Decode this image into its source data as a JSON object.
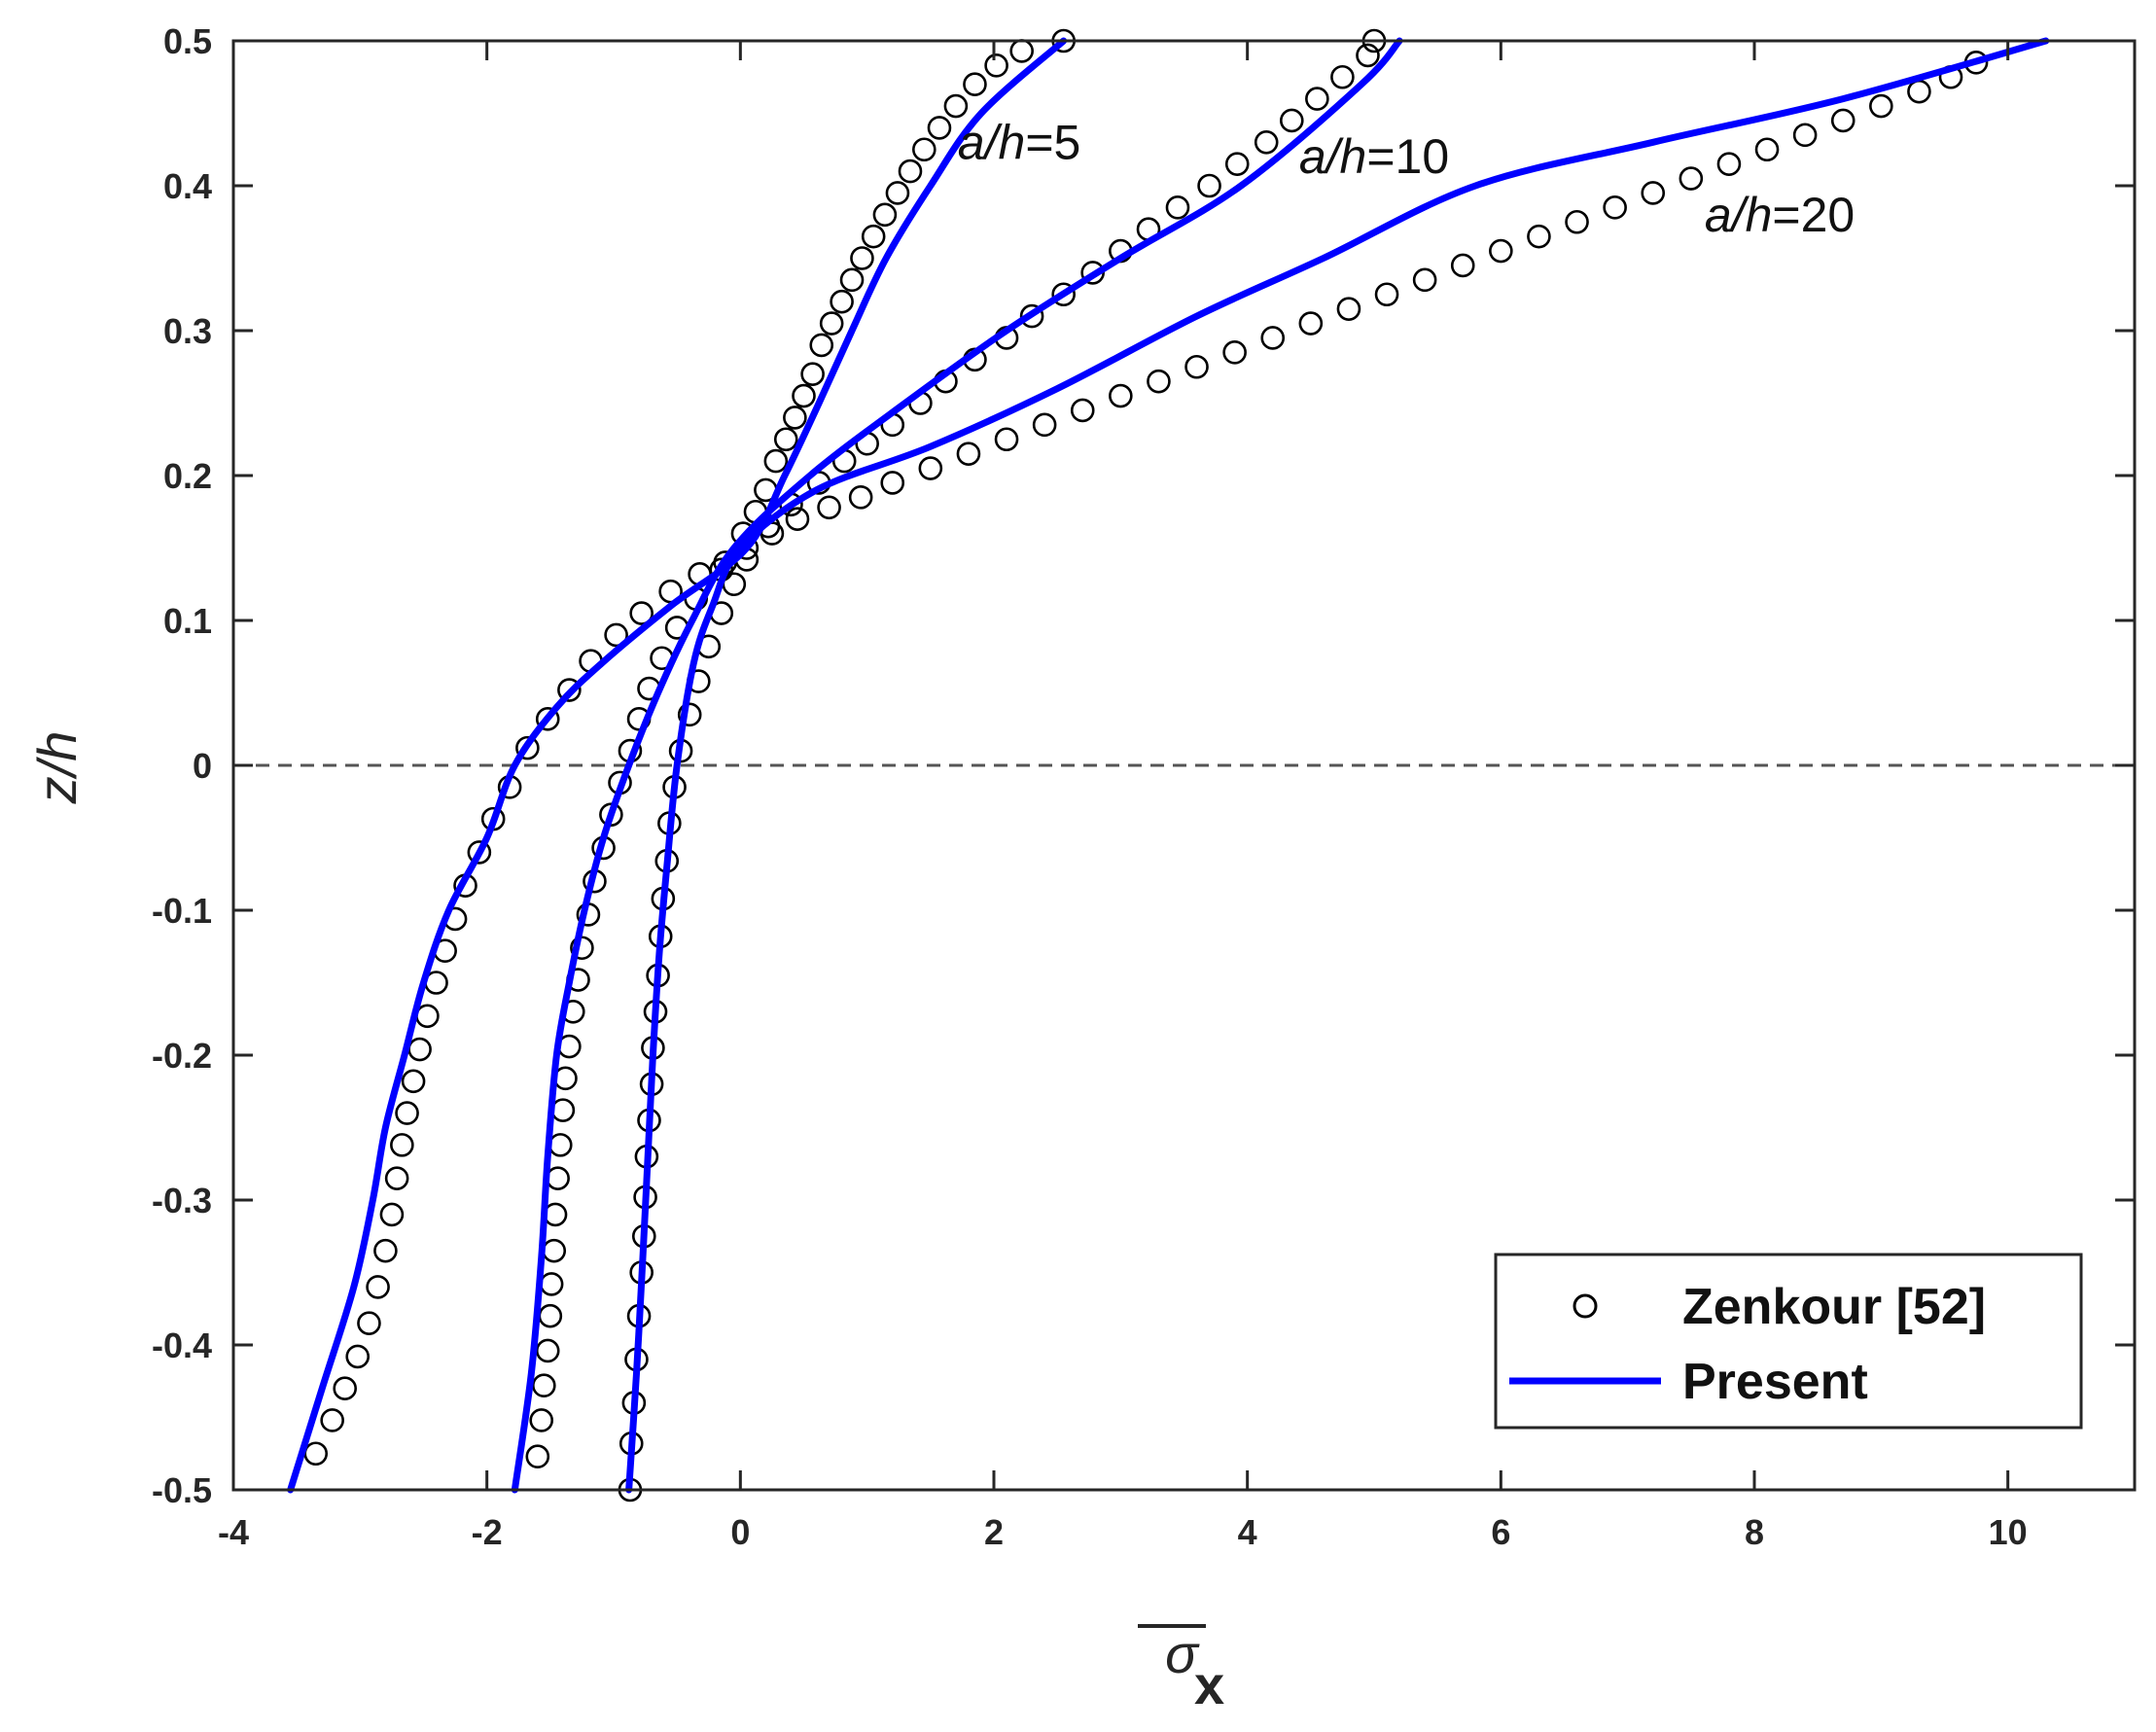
{
  "chart_data": {
    "type": "line",
    "xlabel_symbol": "σ",
    "xlabel_sub": "x",
    "ylabel": "z/h",
    "xlim": [
      -4,
      11
    ],
    "ylim": [
      -0.5,
      0.5
    ],
    "xticks": [
      -4,
      -2,
      0,
      2,
      4,
      6,
      8,
      10
    ],
    "xtick_labels": [
      "-4",
      "-2",
      "0",
      "2",
      "4",
      "6",
      "8",
      "10"
    ],
    "yticks": [
      -0.5,
      -0.4,
      -0.3,
      -0.2,
      -0.1,
      0,
      0.1,
      0.2,
      0.3,
      0.4,
      0.5
    ],
    "ytick_labels": [
      "-0.5",
      "-0.4",
      "-0.3",
      "-0.2",
      "-0.1",
      "0",
      "0.1",
      "0.2",
      "0.3",
      "0.4",
      "0.5"
    ],
    "grid": false,
    "reference_line": {
      "y": 0,
      "style": "dashed"
    },
    "legend": {
      "position": "bottom-right",
      "entries": [
        {
          "label": "Zenkour [52]",
          "marker": "open-circle",
          "color": "#000000"
        },
        {
          "label": "Present",
          "marker": "line",
          "color": "#0000ff"
        }
      ]
    },
    "curve_labels": [
      {
        "text": "a/h=5",
        "italic": "a/h",
        "rest": "=5",
        "x": 2.2,
        "y": 0.43
      },
      {
        "text": "a/h=10",
        "italic": "a/h",
        "rest": "=10",
        "x": 5.0,
        "y": 0.42
      },
      {
        "text": "a/h=20",
        "italic": "a/h",
        "rest": "=20",
        "x": 8.2,
        "y": 0.38
      }
    ],
    "series": [
      {
        "name": "Present",
        "group": "a/h=5",
        "style": "line",
        "color": "#0000ff",
        "points": [
          [
            -3.55,
            -0.5
          ],
          [
            -3.3,
            -0.43
          ],
          [
            -3.05,
            -0.36
          ],
          [
            -2.9,
            -0.3
          ],
          [
            -2.8,
            -0.25
          ],
          [
            -2.65,
            -0.2
          ],
          [
            -2.5,
            -0.15
          ],
          [
            -2.3,
            -0.1
          ],
          [
            -2.0,
            -0.05
          ],
          [
            -1.78,
            0.0
          ],
          [
            -1.45,
            0.04
          ],
          [
            -1.1,
            0.07
          ],
          [
            -0.55,
            0.11
          ],
          [
            0.05,
            0.15
          ],
          [
            0.35,
            0.2
          ],
          [
            0.62,
            0.25
          ],
          [
            0.88,
            0.3
          ],
          [
            1.15,
            0.35
          ],
          [
            1.5,
            0.4
          ],
          [
            1.9,
            0.45
          ],
          [
            2.55,
            0.5
          ]
        ]
      },
      {
        "name": "Present",
        "group": "a/h=10",
        "style": "line",
        "color": "#0000ff",
        "points": [
          [
            -1.78,
            -0.5
          ],
          [
            -1.65,
            -0.42
          ],
          [
            -1.57,
            -0.34
          ],
          [
            -1.52,
            -0.27
          ],
          [
            -1.45,
            -0.2
          ],
          [
            -1.35,
            -0.15
          ],
          [
            -1.23,
            -0.1
          ],
          [
            -1.08,
            -0.05
          ],
          [
            -0.88,
            0.0
          ],
          [
            -0.65,
            0.05
          ],
          [
            -0.38,
            0.1
          ],
          [
            -0.05,
            0.15
          ],
          [
            0.55,
            0.2
          ],
          [
            1.3,
            0.25
          ],
          [
            2.1,
            0.3
          ],
          [
            3.0,
            0.35
          ],
          [
            3.95,
            0.4
          ],
          [
            4.9,
            0.47
          ],
          [
            5.2,
            0.5
          ]
        ]
      },
      {
        "name": "Present",
        "group": "a/h=20",
        "style": "line",
        "color": "#0000ff",
        "points": [
          [
            -0.88,
            -0.5
          ],
          [
            -0.82,
            -0.42
          ],
          [
            -0.77,
            -0.34
          ],
          [
            -0.73,
            -0.27
          ],
          [
            -0.69,
            -0.2
          ],
          [
            -0.64,
            -0.13
          ],
          [
            -0.58,
            -0.07
          ],
          [
            -0.5,
            0.0
          ],
          [
            -0.37,
            0.07
          ],
          [
            -0.22,
            0.11
          ],
          [
            0.0,
            0.15
          ],
          [
            0.6,
            0.19
          ],
          [
            1.5,
            0.22
          ],
          [
            2.5,
            0.26
          ],
          [
            3.6,
            0.31
          ],
          [
            4.6,
            0.35
          ],
          [
            5.8,
            0.4
          ],
          [
            7.2,
            0.43
          ],
          [
            8.7,
            0.46
          ],
          [
            10.3,
            0.5
          ]
        ]
      },
      {
        "name": "Zenkour [52]",
        "group": "a/h=5",
        "style": "circle",
        "color": "#000000",
        "points": [
          [
            -3.35,
            -0.475
          ],
          [
            -3.22,
            -0.452
          ],
          [
            -3.12,
            -0.43
          ],
          [
            -3.02,
            -0.408
          ],
          [
            -2.93,
            -0.385
          ],
          [
            -2.86,
            -0.36
          ],
          [
            -2.8,
            -0.335
          ],
          [
            -2.75,
            -0.31
          ],
          [
            -2.71,
            -0.285
          ],
          [
            -2.67,
            -0.262
          ],
          [
            -2.63,
            -0.24
          ],
          [
            -2.58,
            -0.218
          ],
          [
            -2.53,
            -0.196
          ],
          [
            -2.47,
            -0.173
          ],
          [
            -2.4,
            -0.15
          ],
          [
            -2.33,
            -0.128
          ],
          [
            -2.25,
            -0.106
          ],
          [
            -2.17,
            -0.083
          ],
          [
            -2.06,
            -0.06
          ],
          [
            -1.95,
            -0.037
          ],
          [
            -1.82,
            -0.015
          ],
          [
            -1.68,
            0.012
          ],
          [
            -1.52,
            0.032
          ],
          [
            -1.35,
            0.052
          ],
          [
            -1.18,
            0.072
          ],
          [
            -0.98,
            0.09
          ],
          [
            -0.78,
            0.105
          ],
          [
            -0.55,
            0.12
          ],
          [
            -0.32,
            0.132
          ],
          [
            -0.12,
            0.14
          ],
          [
            0.02,
            0.16
          ],
          [
            0.12,
            0.175
          ],
          [
            0.2,
            0.19
          ],
          [
            0.28,
            0.21
          ],
          [
            0.36,
            0.225
          ],
          [
            0.43,
            0.24
          ],
          [
            0.5,
            0.255
          ],
          [
            0.57,
            0.27
          ],
          [
            0.64,
            0.29
          ],
          [
            0.72,
            0.305
          ],
          [
            0.8,
            0.32
          ],
          [
            0.88,
            0.335
          ],
          [
            0.96,
            0.35
          ],
          [
            1.05,
            0.365
          ],
          [
            1.14,
            0.38
          ],
          [
            1.24,
            0.395
          ],
          [
            1.34,
            0.41
          ],
          [
            1.45,
            0.425
          ],
          [
            1.57,
            0.44
          ],
          [
            1.7,
            0.455
          ],
          [
            1.85,
            0.47
          ],
          [
            2.02,
            0.483
          ],
          [
            2.22,
            0.493
          ],
          [
            2.55,
            0.5
          ]
        ]
      },
      {
        "name": "Zenkour [52]",
        "group": "a/h=10",
        "style": "circle",
        "color": "#000000",
        "points": [
          [
            -1.6,
            -0.477
          ],
          [
            -1.57,
            -0.452
          ],
          [
            -1.55,
            -0.428
          ],
          [
            -1.52,
            -0.404
          ],
          [
            -1.5,
            -0.38
          ],
          [
            -1.49,
            -0.358
          ],
          [
            -1.47,
            -0.335
          ],
          [
            -1.46,
            -0.31
          ],
          [
            -1.44,
            -0.285
          ],
          [
            -1.42,
            -0.262
          ],
          [
            -1.4,
            -0.238
          ],
          [
            -1.38,
            -0.216
          ],
          [
            -1.35,
            -0.194
          ],
          [
            -1.32,
            -0.17
          ],
          [
            -1.28,
            -0.148
          ],
          [
            -1.25,
            -0.126
          ],
          [
            -1.2,
            -0.103
          ],
          [
            -1.15,
            -0.08
          ],
          [
            -1.08,
            -0.057
          ],
          [
            -1.02,
            -0.034
          ],
          [
            -0.95,
            -0.012
          ],
          [
            -0.87,
            0.01
          ],
          [
            -0.8,
            0.032
          ],
          [
            -0.72,
            0.053
          ],
          [
            -0.62,
            0.074
          ],
          [
            -0.5,
            0.095
          ],
          [
            -0.35,
            0.115
          ],
          [
            -0.15,
            0.135
          ],
          [
            0.05,
            0.15
          ],
          [
            0.22,
            0.165
          ],
          [
            0.4,
            0.18
          ],
          [
            0.62,
            0.195
          ],
          [
            0.82,
            0.21
          ],
          [
            1.0,
            0.222
          ],
          [
            1.2,
            0.235
          ],
          [
            1.42,
            0.25
          ],
          [
            1.62,
            0.265
          ],
          [
            1.85,
            0.28
          ],
          [
            2.1,
            0.295
          ],
          [
            2.3,
            0.31
          ],
          [
            2.55,
            0.325
          ],
          [
            2.78,
            0.34
          ],
          [
            3.0,
            0.355
          ],
          [
            3.22,
            0.37
          ],
          [
            3.45,
            0.385
          ],
          [
            3.7,
            0.4
          ],
          [
            3.92,
            0.415
          ],
          [
            4.15,
            0.43
          ],
          [
            4.35,
            0.445
          ],
          [
            4.55,
            0.46
          ],
          [
            4.75,
            0.475
          ],
          [
            4.95,
            0.49
          ],
          [
            5.0,
            0.5
          ]
        ]
      },
      {
        "name": "Zenkour [52]",
        "group": "a/h=20",
        "style": "circle",
        "color": "#000000",
        "points": [
          [
            -0.87,
            -0.5
          ],
          [
            -0.86,
            -0.468
          ],
          [
            -0.84,
            -0.44
          ],
          [
            -0.82,
            -0.41
          ],
          [
            -0.8,
            -0.38
          ],
          [
            -0.78,
            -0.35
          ],
          [
            -0.76,
            -0.325
          ],
          [
            -0.75,
            -0.298
          ],
          [
            -0.74,
            -0.27
          ],
          [
            -0.72,
            -0.245
          ],
          [
            -0.7,
            -0.22
          ],
          [
            -0.69,
            -0.195
          ],
          [
            -0.67,
            -0.17
          ],
          [
            -0.65,
            -0.145
          ],
          [
            -0.63,
            -0.118
          ],
          [
            -0.61,
            -0.092
          ],
          [
            -0.58,
            -0.066
          ],
          [
            -0.56,
            -0.04
          ],
          [
            -0.52,
            -0.015
          ],
          [
            -0.47,
            0.01
          ],
          [
            -0.4,
            0.035
          ],
          [
            -0.33,
            0.058
          ],
          [
            -0.25,
            0.082
          ],
          [
            -0.15,
            0.105
          ],
          [
            -0.05,
            0.125
          ],
          [
            0.05,
            0.142
          ],
          [
            0.25,
            0.16
          ],
          [
            0.45,
            0.17
          ],
          [
            0.7,
            0.178
          ],
          [
            0.95,
            0.185
          ],
          [
            1.2,
            0.195
          ],
          [
            1.5,
            0.205
          ],
          [
            1.8,
            0.215
          ],
          [
            2.1,
            0.225
          ],
          [
            2.4,
            0.235
          ],
          [
            2.7,
            0.245
          ],
          [
            3.0,
            0.255
          ],
          [
            3.3,
            0.265
          ],
          [
            3.6,
            0.275
          ],
          [
            3.9,
            0.285
          ],
          [
            4.2,
            0.295
          ],
          [
            4.5,
            0.305
          ],
          [
            4.8,
            0.315
          ],
          [
            5.1,
            0.325
          ],
          [
            5.4,
            0.335
          ],
          [
            5.7,
            0.345
          ],
          [
            6.0,
            0.355
          ],
          [
            6.3,
            0.365
          ],
          [
            6.6,
            0.375
          ],
          [
            6.9,
            0.385
          ],
          [
            7.2,
            0.395
          ],
          [
            7.5,
            0.405
          ],
          [
            7.8,
            0.415
          ],
          [
            8.1,
            0.425
          ],
          [
            8.4,
            0.435
          ],
          [
            8.7,
            0.445
          ],
          [
            9.0,
            0.455
          ],
          [
            9.3,
            0.465
          ],
          [
            9.55,
            0.475
          ],
          [
            9.75,
            0.485
          ]
        ]
      }
    ]
  }
}
